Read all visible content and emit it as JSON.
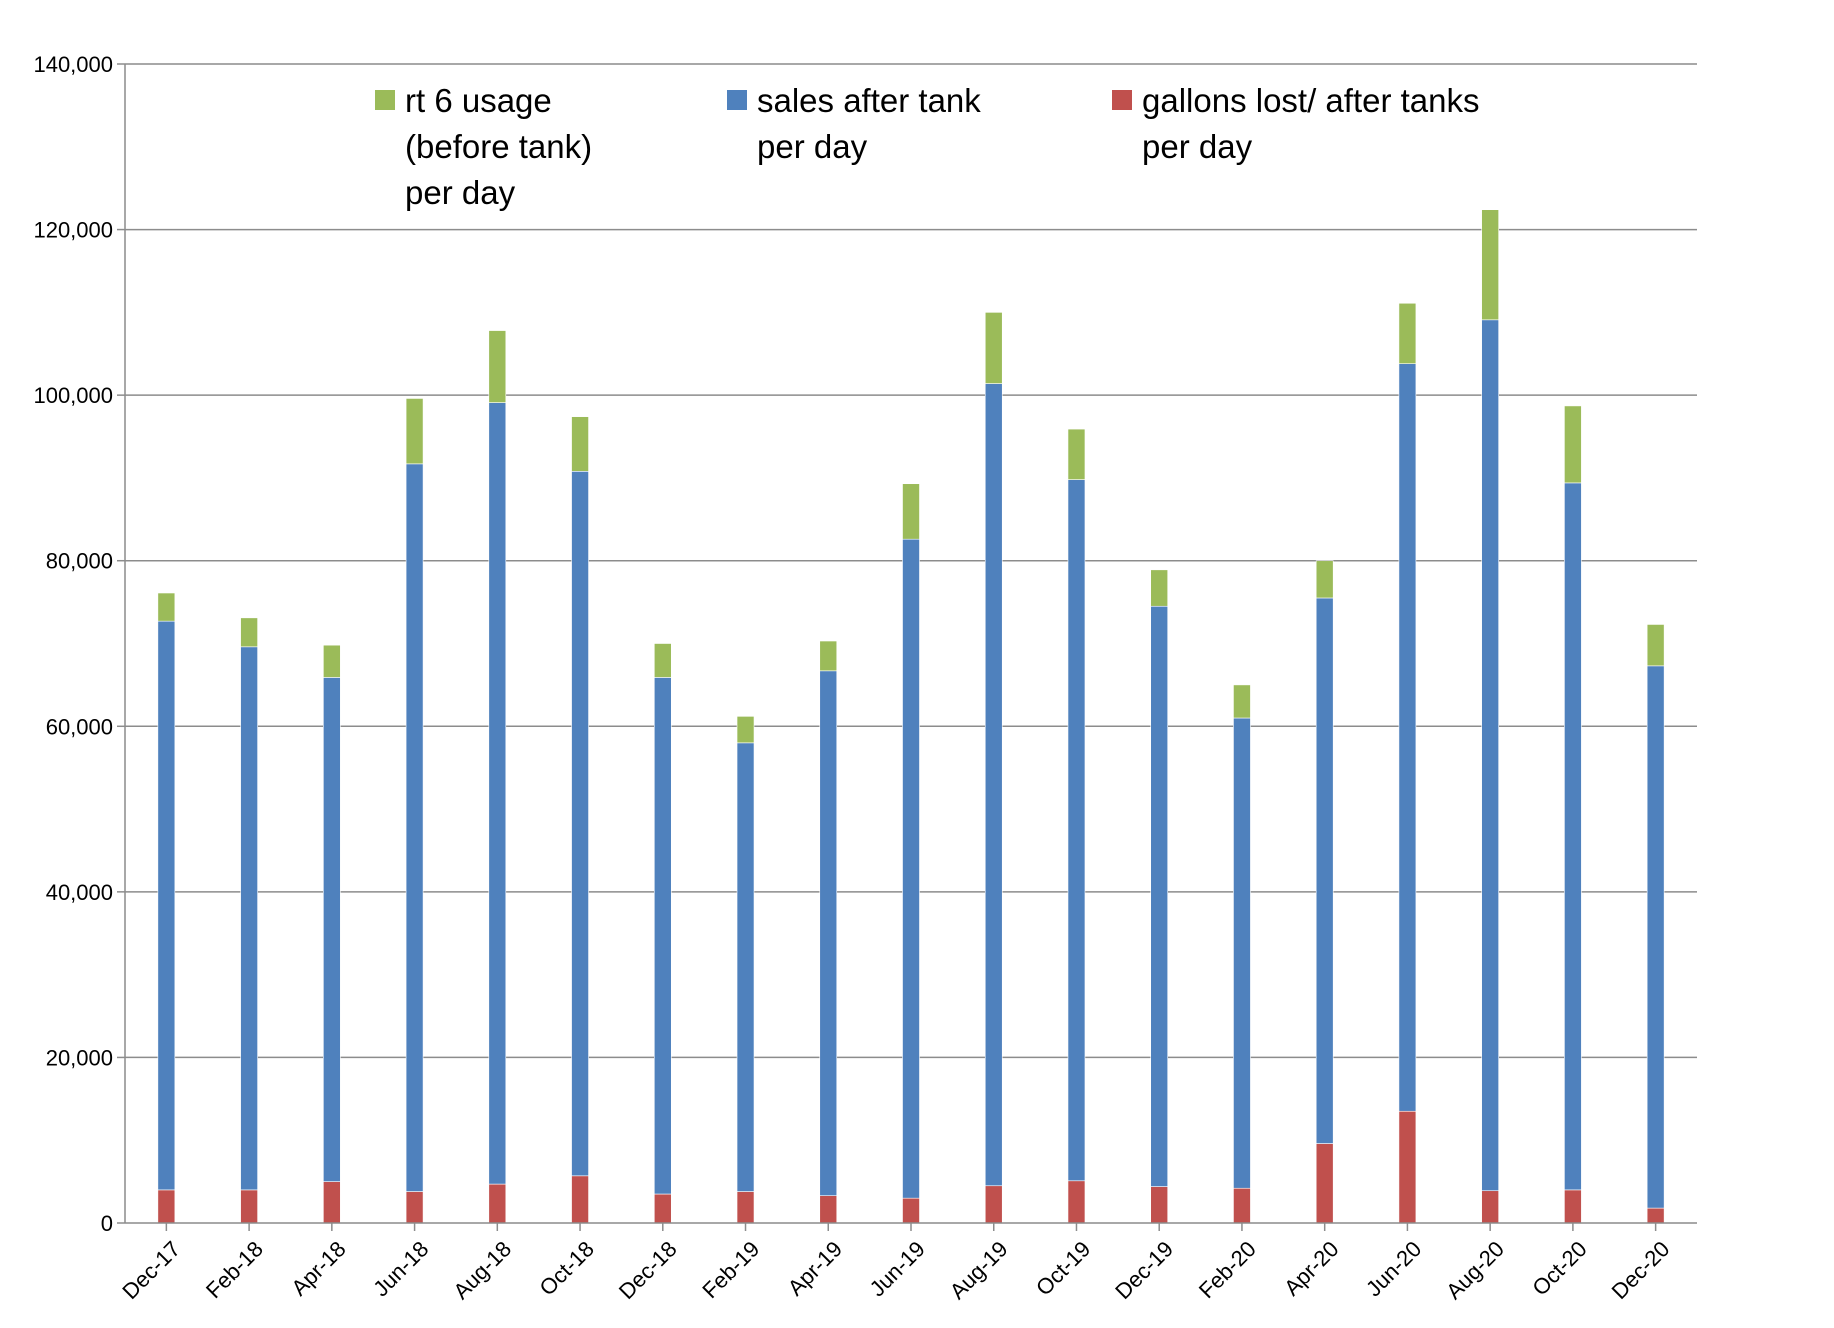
{
  "chart_data": {
    "type": "bar",
    "stacked": true,
    "title": "",
    "xlabel": "",
    "ylabel": "",
    "ylim": [
      0,
      140000
    ],
    "y_ticks": [
      0,
      20000,
      40000,
      60000,
      80000,
      100000,
      120000,
      140000
    ],
    "y_tick_labels": [
      "0",
      "20,000",
      "40,000",
      "60,000",
      "80,000",
      "100,000",
      "120,000",
      "140,000"
    ],
    "grid": true,
    "legend_position": "top",
    "categories": [
      "Dec-17",
      "Feb-18",
      "Apr-18",
      "Jun-18",
      "Aug-18",
      "Oct-18",
      "Dec-18",
      "Feb-19",
      "Apr-19",
      "Jun-19",
      "Aug-19",
      "Oct-19",
      "Dec-19",
      "Feb-20",
      "Apr-20",
      "Jun-20",
      "Aug-20",
      "Oct-20",
      "Dec-20"
    ],
    "series": [
      {
        "name": "gallons lost/ after tanks per day",
        "legend_lines": [
          "gallons lost/ after tanks",
          "per day"
        ],
        "color": "#C0504D",
        "values": [
          4000,
          4000,
          5000,
          3800,
          4700,
          5700,
          3500,
          3800,
          3300,
          3000,
          4500,
          5100,
          4400,
          4200,
          9600,
          13500,
          3900,
          4000,
          1800
        ]
      },
      {
        "name": "sales after tank per day",
        "legend_lines": [
          "sales after tank",
          "per day"
        ],
        "color": "#4F81BD",
        "values": [
          68700,
          65600,
          60900,
          87900,
          94400,
          85100,
          62400,
          54200,
          63400,
          79600,
          96900,
          84700,
          70100,
          56800,
          65900,
          90300,
          105200,
          85400,
          65500
        ]
      },
      {
        "name": "rt 6 usage (before tank) per day",
        "legend_lines": [
          "rt 6 usage",
          "(before tank)",
          "per day"
        ],
        "color": "#9BBB59",
        "values": [
          3400,
          3500,
          3900,
          7900,
          8700,
          6600,
          4100,
          3200,
          3600,
          6700,
          8600,
          6100,
          4400,
          4000,
          4500,
          7300,
          13300,
          9300,
          5000
        ]
      }
    ],
    "legend_order": [
      2,
      1,
      0
    ]
  }
}
